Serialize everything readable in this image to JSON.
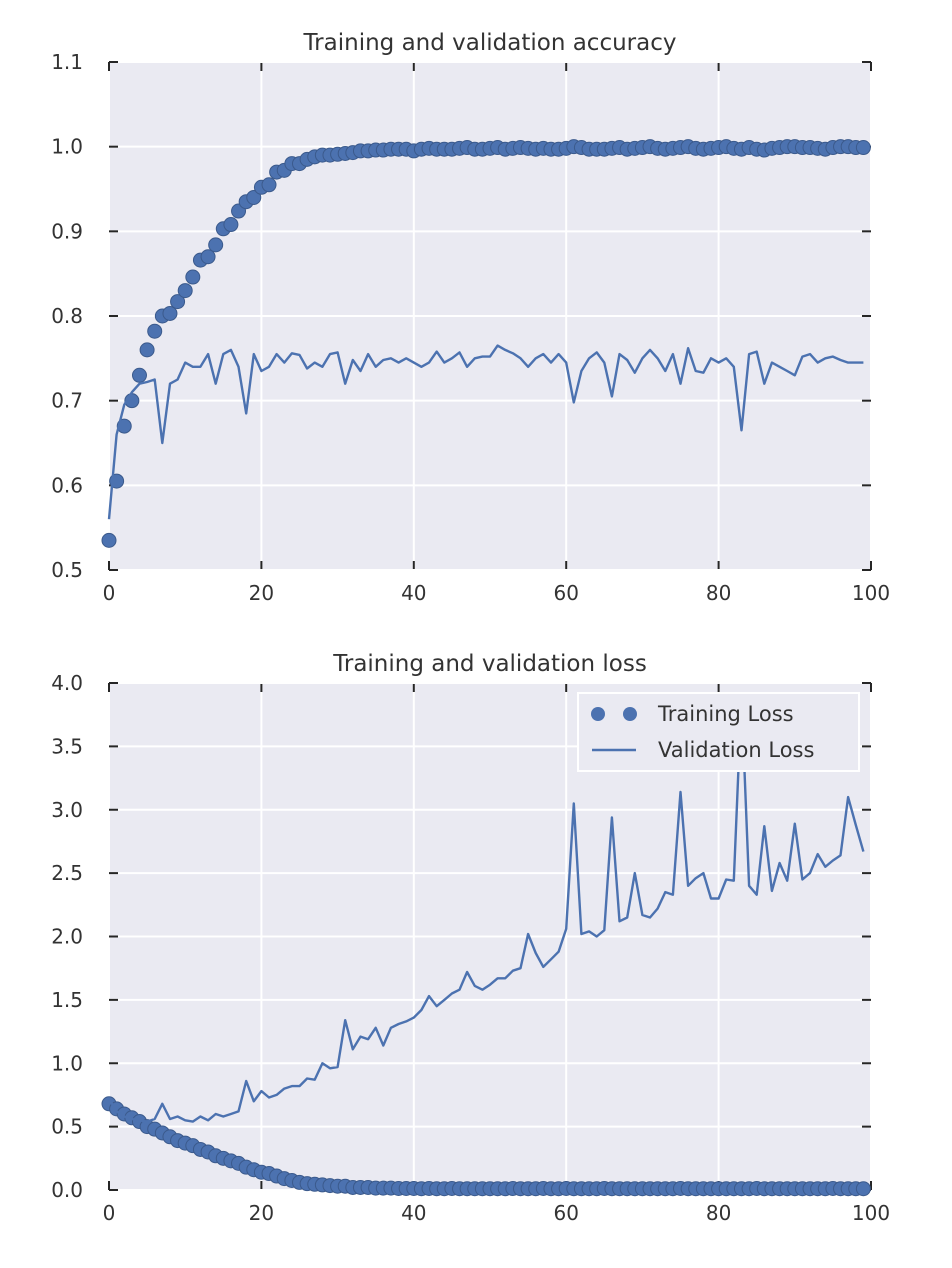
{
  "chart_data": [
    {
      "type": "line",
      "title": "Training and validation accuracy",
      "xlim": [
        0,
        100
      ],
      "ylim": [
        0.5,
        1.1
      ],
      "xticks": [
        "0",
        "20",
        "40",
        "60",
        "80",
        "100"
      ],
      "yticks": [
        "0.5",
        "0.6",
        "0.7",
        "0.8",
        "0.9",
        "1.0",
        "1.1"
      ],
      "grid": true,
      "legend": null,
      "color": "#4c72b0",
      "series": [
        {
          "style": "dots",
          "x": [
            0,
            1,
            2,
            3,
            4,
            5,
            6,
            7,
            8,
            9,
            10,
            11,
            12,
            13,
            14,
            15,
            16,
            17,
            18,
            19,
            20,
            21,
            22,
            23,
            24,
            25,
            26,
            27,
            28,
            29,
            30,
            31,
            32,
            33,
            34,
            35,
            36,
            37,
            38,
            39,
            40,
            41,
            42,
            43,
            44,
            45,
            46,
            47,
            48,
            49,
            50,
            51,
            52,
            53,
            54,
            55,
            56,
            57,
            58,
            59,
            60,
            61,
            62,
            63,
            64,
            65,
            66,
            67,
            68,
            69,
            70,
            71,
            72,
            73,
            74,
            75,
            76,
            77,
            78,
            79,
            80,
            81,
            82,
            83,
            84,
            85,
            86,
            87,
            88,
            89,
            90,
            91,
            92,
            93,
            94,
            95,
            96,
            97,
            98,
            99
          ],
          "values": [
            0.535,
            0.605,
            0.67,
            0.7,
            0.73,
            0.76,
            0.782,
            0.8,
            0.803,
            0.817,
            0.83,
            0.846,
            0.866,
            0.87,
            0.884,
            0.903,
            0.908,
            0.924,
            0.935,
            0.94,
            0.952,
            0.955,
            0.97,
            0.972,
            0.98,
            0.98,
            0.985,
            0.988,
            0.99,
            0.99,
            0.991,
            0.992,
            0.993,
            0.995,
            0.995,
            0.996,
            0.996,
            0.997,
            0.997,
            0.997,
            0.995,
            0.997,
            0.998,
            0.997,
            0.997,
            0.997,
            0.998,
            0.999,
            0.997,
            0.997,
            0.998,
            0.999,
            0.997,
            0.998,
            0.999,
            0.998,
            0.997,
            0.998,
            0.997,
            0.997,
            0.998,
            1.0,
            0.999,
            0.997,
            0.997,
            0.997,
            0.998,
            0.999,
            0.997,
            0.998,
            0.999,
            1.0,
            0.998,
            0.997,
            0.998,
            0.999,
            1.0,
            0.998,
            0.997,
            0.998,
            0.999,
            1.0,
            0.998,
            0.997,
            0.999,
            0.997,
            0.996,
            0.998,
            0.999,
            1.0,
            1.0,
            0.999,
            0.999,
            0.998,
            0.997,
            0.999,
            1.0,
            1.0,
            0.999,
            0.999
          ]
        },
        {
          "style": "line",
          "x": [
            0,
            1,
            2,
            3,
            4,
            5,
            6,
            7,
            8,
            9,
            10,
            11,
            12,
            13,
            14,
            15,
            16,
            17,
            18,
            19,
            20,
            21,
            22,
            23,
            24,
            25,
            26,
            27,
            28,
            29,
            30,
            31,
            32,
            33,
            34,
            35,
            36,
            37,
            38,
            39,
            40,
            41,
            42,
            43,
            44,
            45,
            46,
            47,
            48,
            49,
            50,
            51,
            52,
            53,
            54,
            55,
            56,
            57,
            58,
            59,
            60,
            61,
            62,
            63,
            64,
            65,
            66,
            67,
            68,
            69,
            70,
            71,
            72,
            73,
            74,
            75,
            76,
            77,
            78,
            79,
            80,
            81,
            82,
            83,
            84,
            85,
            86,
            87,
            88,
            89,
            90,
            91,
            92,
            93,
            94,
            95,
            96,
            97,
            98,
            99
          ],
          "values": [
            0.56,
            0.66,
            0.695,
            0.71,
            0.72,
            0.722,
            0.725,
            0.65,
            0.72,
            0.725,
            0.745,
            0.74,
            0.74,
            0.755,
            0.72,
            0.755,
            0.76,
            0.74,
            0.685,
            0.755,
            0.735,
            0.74,
            0.755,
            0.745,
            0.756,
            0.754,
            0.738,
            0.745,
            0.74,
            0.755,
            0.757,
            0.72,
            0.748,
            0.735,
            0.755,
            0.74,
            0.748,
            0.75,
            0.745,
            0.75,
            0.745,
            0.74,
            0.745,
            0.758,
            0.745,
            0.75,
            0.757,
            0.74,
            0.75,
            0.752,
            0.752,
            0.765,
            0.76,
            0.756,
            0.75,
            0.74,
            0.75,
            0.755,
            0.745,
            0.755,
            0.745,
            0.698,
            0.735,
            0.75,
            0.757,
            0.745,
            0.705,
            0.755,
            0.748,
            0.733,
            0.75,
            0.76,
            0.75,
            0.735,
            0.755,
            0.72,
            0.762,
            0.735,
            0.733,
            0.75,
            0.745,
            0.75,
            0.74,
            0.665,
            0.755,
            0.758,
            0.72,
            0.745,
            0.74,
            0.735,
            0.73,
            0.752,
            0.755,
            0.745,
            0.75,
            0.752,
            0.748,
            0.745,
            0.745,
            0.745
          ]
        }
      ]
    },
    {
      "type": "line",
      "title": "Training and validation loss",
      "xlim": [
        0,
        100
      ],
      "ylim": [
        0.0,
        4.0
      ],
      "xticks": [
        "0",
        "20",
        "40",
        "60",
        "80",
        "100"
      ],
      "yticks": [
        "0.0",
        "0.5",
        "1.0",
        "1.5",
        "2.0",
        "2.5",
        "3.0",
        "3.5",
        "4.0"
      ],
      "grid": true,
      "legend": "top-right",
      "color": "#4c72b0",
      "series": [
        {
          "name": "Training Loss",
          "style": "dots",
          "x": [
            0,
            1,
            2,
            3,
            4,
            5,
            6,
            7,
            8,
            9,
            10,
            11,
            12,
            13,
            14,
            15,
            16,
            17,
            18,
            19,
            20,
            21,
            22,
            23,
            24,
            25,
            26,
            27,
            28,
            29,
            30,
            31,
            32,
            33,
            34,
            35,
            36,
            37,
            38,
            39,
            40,
            41,
            42,
            43,
            44,
            45,
            46,
            47,
            48,
            49,
            50,
            51,
            52,
            53,
            54,
            55,
            56,
            57,
            58,
            59,
            60,
            61,
            62,
            63,
            64,
            65,
            66,
            67,
            68,
            69,
            70,
            71,
            72,
            73,
            74,
            75,
            76,
            77,
            78,
            79,
            80,
            81,
            82,
            83,
            84,
            85,
            86,
            87,
            88,
            89,
            90,
            91,
            92,
            93,
            94,
            95,
            96,
            97,
            98,
            99
          ],
          "values": [
            0.68,
            0.64,
            0.6,
            0.57,
            0.54,
            0.5,
            0.48,
            0.45,
            0.42,
            0.39,
            0.37,
            0.35,
            0.32,
            0.3,
            0.27,
            0.25,
            0.23,
            0.21,
            0.18,
            0.16,
            0.14,
            0.13,
            0.11,
            0.09,
            0.075,
            0.06,
            0.05,
            0.045,
            0.04,
            0.035,
            0.03,
            0.03,
            0.02,
            0.02,
            0.02,
            0.015,
            0.015,
            0.015,
            0.012,
            0.012,
            0.012,
            0.01,
            0.012,
            0.01,
            0.01,
            0.012,
            0.01,
            0.01,
            0.01,
            0.01,
            0.01,
            0.01,
            0.01,
            0.012,
            0.01,
            0.01,
            0.01,
            0.012,
            0.01,
            0.01,
            0.012,
            0.01,
            0.01,
            0.01,
            0.01,
            0.012,
            0.01,
            0.01,
            0.01,
            0.01,
            0.01,
            0.01,
            0.01,
            0.01,
            0.01,
            0.012,
            0.01,
            0.01,
            0.01,
            0.01,
            0.01,
            0.01,
            0.01,
            0.01,
            0.01,
            0.012,
            0.01,
            0.01,
            0.01,
            0.01,
            0.01,
            0.01,
            0.01,
            0.01,
            0.01,
            0.012,
            0.01,
            0.01,
            0.01,
            0.01
          ]
        },
        {
          "name": "Validation Loss",
          "style": "line",
          "x": [
            0,
            1,
            2,
            3,
            4,
            5,
            6,
            7,
            8,
            9,
            10,
            11,
            12,
            13,
            14,
            15,
            16,
            17,
            18,
            19,
            20,
            21,
            22,
            23,
            24,
            25,
            26,
            27,
            28,
            29,
            30,
            31,
            32,
            33,
            34,
            35,
            36,
            37,
            38,
            39,
            40,
            41,
            42,
            43,
            44,
            45,
            46,
            47,
            48,
            49,
            50,
            51,
            52,
            53,
            54,
            55,
            56,
            57,
            58,
            59,
            60,
            61,
            62,
            63,
            64,
            65,
            66,
            67,
            68,
            69,
            70,
            71,
            72,
            73,
            74,
            75,
            76,
            77,
            78,
            79,
            80,
            81,
            82,
            83,
            84,
            85,
            86,
            87,
            88,
            89,
            90,
            91,
            92,
            93,
            94,
            95,
            96,
            97,
            98,
            99
          ],
          "values": [
            0.72,
            0.62,
            0.58,
            0.56,
            0.55,
            0.54,
            0.56,
            0.68,
            0.56,
            0.58,
            0.55,
            0.54,
            0.58,
            0.55,
            0.6,
            0.58,
            0.6,
            0.62,
            0.86,
            0.7,
            0.78,
            0.73,
            0.75,
            0.8,
            0.82,
            0.82,
            0.88,
            0.87,
            1.0,
            0.96,
            0.97,
            1.34,
            1.11,
            1.21,
            1.19,
            1.28,
            1.14,
            1.28,
            1.31,
            1.33,
            1.36,
            1.42,
            1.53,
            1.45,
            1.5,
            1.55,
            1.58,
            1.72,
            1.61,
            1.58,
            1.62,
            1.67,
            1.67,
            1.73,
            1.75,
            2.02,
            1.87,
            1.76,
            1.82,
            1.88,
            2.06,
            3.05,
            2.02,
            2.04,
            2.0,
            2.05,
            2.94,
            2.12,
            2.15,
            2.5,
            2.17,
            2.15,
            2.22,
            2.35,
            2.33,
            3.14,
            2.4,
            2.46,
            2.5,
            2.3,
            2.3,
            2.45,
            2.44,
            3.9,
            2.4,
            2.33,
            2.87,
            2.36,
            2.58,
            2.44,
            2.89,
            2.45,
            2.5,
            2.65,
            2.55,
            2.6,
            2.64,
            3.1,
            2.88,
            2.67
          ]
        }
      ]
    }
  ]
}
